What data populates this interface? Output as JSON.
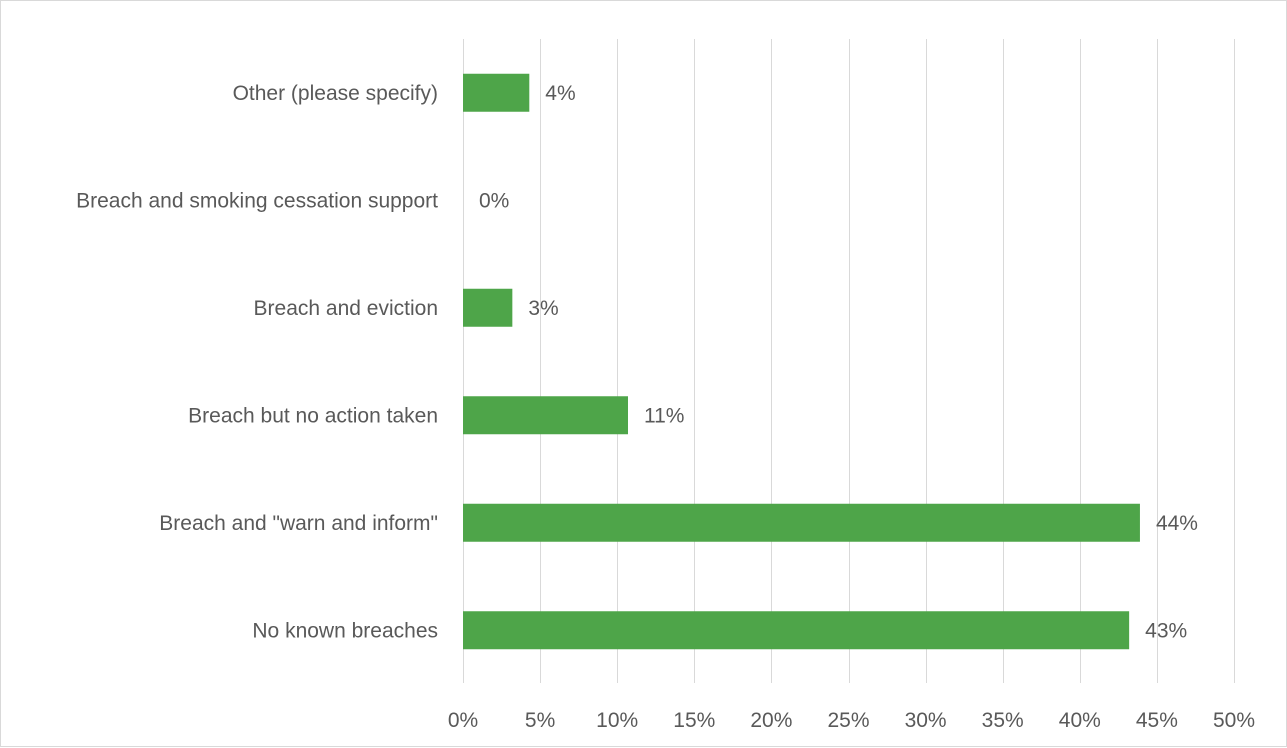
{
  "chart_data": {
    "type": "bar",
    "orientation": "horizontal",
    "categories": [
      "Other (please specify)",
      "Breach and smoking cessation support",
      "Breach and eviction",
      "Breach but no action taken",
      "Breach and \"warn and inform\"",
      "No known breaches"
    ],
    "values": [
      4.3,
      0,
      3.2,
      10.7,
      43.9,
      43.2
    ],
    "data_labels": [
      "4%",
      "0%",
      "3%",
      "11%",
      "44%",
      "43%"
    ],
    "xlim": [
      0,
      50
    ],
    "x_ticks": [
      0,
      5,
      10,
      15,
      20,
      25,
      30,
      35,
      40,
      45,
      50
    ],
    "x_tick_labels": [
      "0%",
      "5%",
      "10%",
      "15%",
      "20%",
      "25%",
      "30%",
      "35%",
      "40%",
      "45%",
      "50%"
    ],
    "grid": "vertical",
    "legend": "none",
    "bar_color": "#4ea549",
    "grid_color": "#d9d9d9",
    "title": "",
    "xlabel": "",
    "ylabel": ""
  }
}
